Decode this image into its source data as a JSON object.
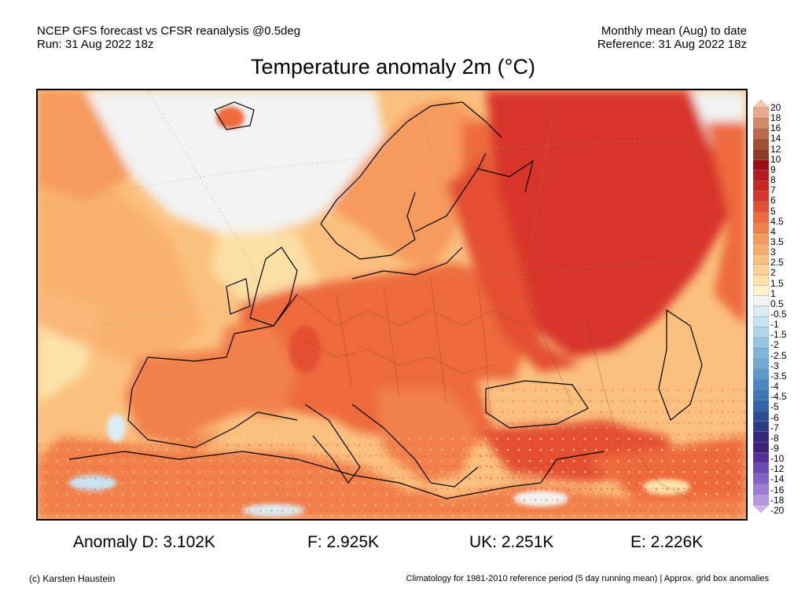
{
  "header": {
    "left_line1": "NCEP GFS forecast vs CFSR reanalysis @0.5deg",
    "left_line2": "Run: 31 Aug 2022 18z",
    "right_line1": "Monthly mean (Aug) to date",
    "right_line2": "Reference: 31 Aug 2022 18z"
  },
  "title": "Temperature anomaly 2m (°C)",
  "map": {
    "region": "Europe, North Africa and Middle East",
    "colors": {
      "strong_warm": "#d8342b",
      "warm": "#ee6a3e",
      "moderate": "#f69a5d",
      "mild": "#fbc07e",
      "slight": "#fde2a8",
      "neutral": "#f2f3f2",
      "cool": "#c8e3f1",
      "cold": "#6fa9d6"
    }
  },
  "colorbar": {
    "labels": [
      "20",
      "18",
      "16",
      "14",
      "12",
      "10",
      "9",
      "8",
      "7",
      "6",
      "5",
      "4.5",
      "4",
      "3.5",
      "3",
      "2.5",
      "2",
      "1.5",
      "1",
      "0.5",
      "-0.5",
      "-1",
      "-1.5",
      "-2",
      "-2.5",
      "-3",
      "-3.5",
      "-4",
      "-4.5",
      "-5",
      "-6",
      "-7",
      "-8",
      "-9",
      "-10",
      "-12",
      "-14",
      "-16",
      "-18",
      "-20"
    ],
    "colors": [
      "#f6c7ae",
      "#e9a98a",
      "#d38866",
      "#bb6948",
      "#a24e33",
      "#8c3a24",
      "#9d0e16",
      "#b81a1d",
      "#c9261f",
      "#d8342b",
      "#e44f33",
      "#ee6a3e",
      "#f2804b",
      "#f69a5d",
      "#f9ad6b",
      "#fbc07e",
      "#fdd294",
      "#fde2a8",
      "#fdf0cb",
      "#f2f3f2",
      "#dcecf5",
      "#c8e3f1",
      "#b0d6ec",
      "#95c6e3",
      "#7db7dc",
      "#6fa9d6",
      "#5d99cb",
      "#4c88c0",
      "#3c76b5",
      "#3363a8",
      "#2b4e97",
      "#2c3b87",
      "#33287a",
      "#3f1f78",
      "#55309a",
      "#6b48b3",
      "#8461c7",
      "#9c7cd6",
      "#b497e2",
      "#cdb5ee"
    ]
  },
  "anomalies": [
    {
      "label": "Anomaly D: 3.102K"
    },
    {
      "label": "F: 2.925K"
    },
    {
      "label": "UK: 2.251K"
    },
    {
      "label": "E: 2.226K"
    }
  ],
  "credit": "(c) Karsten Haustein",
  "footnote": "Climatology for 1981-2010 reference period (5 day running mean) | Approx. grid box anomalies"
}
